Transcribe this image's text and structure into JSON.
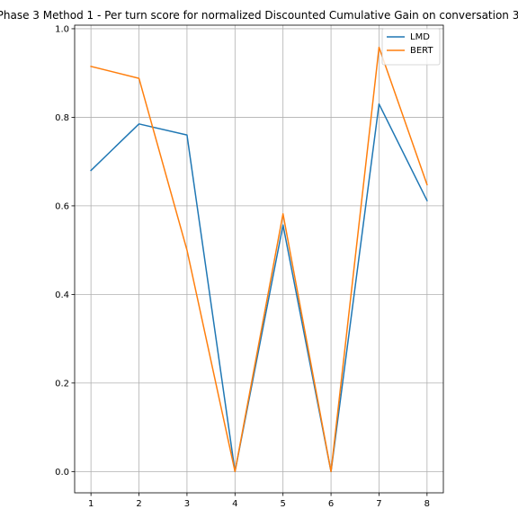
{
  "chart_data": {
    "type": "line",
    "title": "Phase 3 Method 1 - Per turn score for normalized Discounted Cumulative Gain on conversation 3",
    "xlabel": "",
    "ylabel": "",
    "x": [
      1,
      2,
      3,
      4,
      5,
      6,
      7,
      8
    ],
    "xlim": [
      0.66,
      8.34
    ],
    "ylim": [
      -0.048,
      1.008
    ],
    "xticks": [
      "1",
      "2",
      "3",
      "4",
      "5",
      "6",
      "7",
      "8"
    ],
    "yticks": [
      "0.0",
      "0.2",
      "0.4",
      "0.6",
      "0.8",
      "1.0"
    ],
    "grid": true,
    "legend_position": "top-right",
    "series": [
      {
        "name": "LMD",
        "color": "#1f77b4",
        "values": [
          0.68,
          0.785,
          0.76,
          0.0,
          0.557,
          0.0,
          0.83,
          0.612
        ]
      },
      {
        "name": "BERT",
        "color": "#ff7f0e",
        "values": [
          0.915,
          0.888,
          0.5,
          0.0,
          0.582,
          0.0,
          0.958,
          0.648
        ]
      }
    ]
  }
}
